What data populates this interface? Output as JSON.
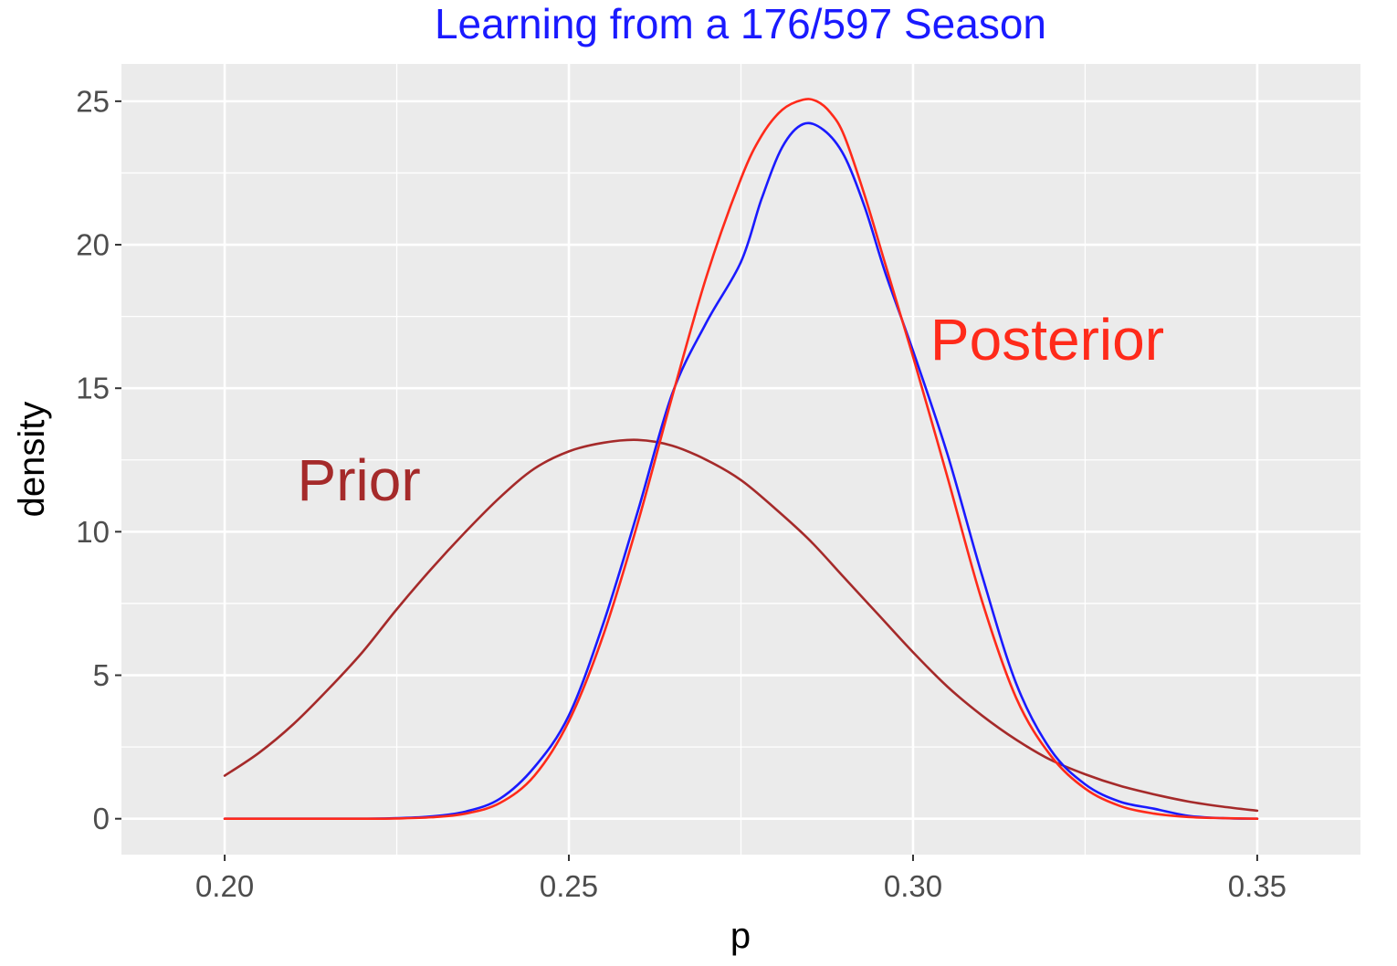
{
  "chart_data": {
    "type": "line",
    "title": "Learning from a 176/597 Season",
    "title_color": "#1a1aff",
    "xlabel": "p",
    "ylabel": "density",
    "xlim": [
      0.185,
      0.365
    ],
    "ylim": [
      -1.25,
      26.3
    ],
    "x_ticks": [
      0.2,
      0.25,
      0.3,
      0.35
    ],
    "x_tick_labels": [
      "0.20",
      "0.25",
      "0.30",
      "0.35"
    ],
    "y_ticks": [
      0,
      5,
      10,
      15,
      20,
      25
    ],
    "y_tick_labels": [
      "0",
      "5",
      "10",
      "15",
      "20",
      "25"
    ],
    "x_minor_ticks": [
      0.225,
      0.275,
      0.325
    ],
    "y_minor_ticks": [
      2.5,
      7.5,
      12.5,
      17.5,
      22.5
    ],
    "grid": true,
    "panel_background": "#ebebeb",
    "grid_color": "#ffffff",
    "legend": "none",
    "series": [
      {
        "color": "#a52a2a",
        "x": [
          0.2,
          0.205,
          0.21,
          0.215,
          0.22,
          0.225,
          0.23,
          0.235,
          0.24,
          0.245,
          0.25,
          0.255,
          0.26,
          0.265,
          0.27,
          0.275,
          0.28,
          0.285,
          0.29,
          0.295,
          0.3,
          0.305,
          0.31,
          0.315,
          0.32,
          0.325,
          0.33,
          0.335,
          0.34,
          0.345,
          0.35
        ],
        "y": [
          1.5,
          2.3,
          3.3,
          4.5,
          5.8,
          7.3,
          8.7,
          10.0,
          11.2,
          12.2,
          12.8,
          13.1,
          13.2,
          13.0,
          12.5,
          11.8,
          10.8,
          9.7,
          8.4,
          7.1,
          5.8,
          4.6,
          3.6,
          2.75,
          2.05,
          1.55,
          1.15,
          0.85,
          0.6,
          0.42,
          0.28
        ]
      },
      {
        "color": "#1a1aff",
        "x": [
          0.2,
          0.21,
          0.22,
          0.225,
          0.23,
          0.235,
          0.24,
          0.245,
          0.25,
          0.255,
          0.26,
          0.265,
          0.27,
          0.275,
          0.278,
          0.281,
          0.284,
          0.287,
          0.29,
          0.293,
          0.296,
          0.3,
          0.305,
          0.31,
          0.315,
          0.32,
          0.325,
          0.33,
          0.335,
          0.34,
          0.345,
          0.35
        ],
        "y": [
          0.0,
          0.0,
          0.0,
          0.02,
          0.08,
          0.25,
          0.7,
          1.8,
          3.6,
          6.8,
          10.7,
          14.8,
          17.3,
          19.4,
          21.6,
          23.4,
          24.2,
          24.0,
          23.1,
          21.3,
          19.0,
          16.3,
          12.7,
          8.5,
          4.7,
          2.4,
          1.2,
          0.6,
          0.35,
          0.1,
          0.02,
          0.0
        ]
      },
      {
        "color": "#ff2a1a",
        "x": [
          0.2,
          0.21,
          0.22,
          0.225,
          0.23,
          0.235,
          0.24,
          0.245,
          0.25,
          0.255,
          0.26,
          0.265,
          0.27,
          0.275,
          0.278,
          0.281,
          0.284,
          0.286,
          0.288,
          0.29,
          0.293,
          0.296,
          0.3,
          0.305,
          0.31,
          0.315,
          0.32,
          0.325,
          0.33,
          0.335,
          0.34,
          0.345,
          0.35
        ],
        "y": [
          0.0,
          0.0,
          0.0,
          0.01,
          0.05,
          0.18,
          0.55,
          1.5,
          3.4,
          6.4,
          10.3,
          14.7,
          18.9,
          22.3,
          23.8,
          24.7,
          25.05,
          25.0,
          24.6,
          23.8,
          21.7,
          19.3,
          16.1,
          11.9,
          7.6,
          4.2,
          2.2,
          1.05,
          0.45,
          0.18,
          0.06,
          0.02,
          0.0
        ]
      }
    ],
    "annotations": [
      {
        "text": "Prior",
        "x": 0.2195,
        "y": 11.8,
        "color": "#a52a2a"
      },
      {
        "text": "Posterior",
        "x": 0.3195,
        "y": 16.7,
        "color": "#ff2a1a"
      }
    ]
  }
}
